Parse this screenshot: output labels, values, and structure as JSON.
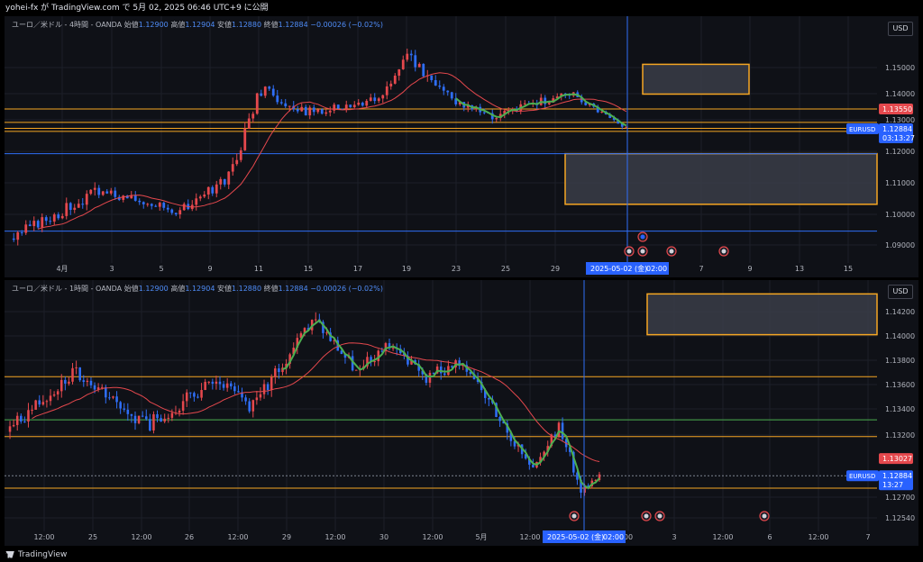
{
  "topbar": {
    "text": "yohei-fx が TradingView.com で 5月 02, 2025 06:46 UTC+9 に公開"
  },
  "footer": {
    "brand": "TradingView"
  },
  "colors": {
    "up": "#e5484d",
    "down": "#2f6ef7",
    "ma": "#e5484d",
    "hull_up": "#4caf50",
    "hull_down": "#2f6ef7",
    "hline_orange": "#f5a623",
    "hline_blue": "#2f6ef7",
    "hline_green": "#4caf50",
    "zone_border": "#f5a623",
    "zone_fill": "#3a3d48",
    "cursor": "#2f6ef7"
  },
  "panes": [
    {
      "header": {
        "symbol": "ユーロ／米ドル - 4時間 - OANDA",
        "o_label": "始値",
        "o": "1.12900",
        "h_label": "高値",
        "h": "1.12904",
        "l_label": "安値",
        "l": "1.12880",
        "c_label": "終値",
        "c": "1.12884",
        "chg": "−0.00026 (−0.02%)"
      },
      "currency": "USD",
      "price_labels": [
        "1.15000",
        "1.14000",
        "1.13000",
        "1.12000",
        "1.11000",
        "1.10000",
        "1.09000"
      ],
      "x_labels": [
        "4月",
        "3",
        "5",
        "9",
        "11",
        "15",
        "17",
        "19",
        "23",
        "25",
        "29",
        "7",
        "9",
        "13",
        "15"
      ],
      "cursor_date": "2025-05-02 (金)",
      "cursor_time": "02:00",
      "badge_red": "1.13550",
      "badge_symbol": "EURUSD",
      "badge_price": "1.12884",
      "badge_countdown": "03:13:27",
      "chart_data": {
        "type": "candlestick",
        "title": "ユーロ／米ドル - 4時間 - OANDA",
        "ylim": [
          1.085,
          1.16
        ],
        "last_close": 1.12884,
        "horizontal_lines": [
          1.1355,
          1.131,
          1.129,
          1.128,
          1.1205,
          1.0945
        ],
        "zones": [
          {
            "y_low": 1.1405,
            "y_high": 1.1505
          },
          {
            "y_low": 1.1035,
            "y_high": 1.1205
          }
        ],
        "series": [
          {
            "name": "price",
            "segments": [
              {
                "from": 1.092,
                "to": 1.108,
                "n": 22,
                "noise": 0.004,
                "seed": 3
              },
              {
                "from": 1.108,
                "to": 1.101,
                "n": 20,
                "noise": 0.003,
                "seed": 7
              },
              {
                "from": 1.101,
                "to": 1.113,
                "n": 12,
                "noise": 0.004,
                "seed": 11
              },
              {
                "from": 1.113,
                "to": 1.142,
                "n": 8,
                "noise": 0.005,
                "seed": 13
              },
              {
                "from": 1.142,
                "to": 1.134,
                "n": 12,
                "noise": 0.004,
                "seed": 17
              },
              {
                "from": 1.134,
                "to": 1.137,
                "n": 12,
                "noise": 0.003,
                "seed": 19
              },
              {
                "from": 1.137,
                "to": 1.139,
                "n": 6,
                "noise": 0.003,
                "seed": 21
              },
              {
                "from": 1.139,
                "to": 1.153,
                "n": 6,
                "noise": 0.004,
                "seed": 23
              },
              {
                "from": 1.153,
                "to": 1.138,
                "n": 12,
                "noise": 0.004,
                "seed": 29
              },
              {
                "from": 1.138,
                "to": 1.133,
                "n": 10,
                "noise": 0.003,
                "seed": 31
              },
              {
                "from": 1.133,
                "to": 1.141,
                "n": 18,
                "noise": 0.003,
                "seed": 37
              },
              {
                "from": 1.141,
                "to": 1.1288,
                "n": 14,
                "noise": 0.002,
                "seed": 41
              }
            ]
          }
        ]
      }
    },
    {
      "header": {
        "symbol": "ユーロ／米ドル - 1時間 - OANDA",
        "o_label": "始値",
        "o": "1.12900",
        "h_label": "高値",
        "h": "1.12904",
        "l_label": "安値",
        "l": "1.12880",
        "c_label": "終値",
        "c": "1.12884",
        "chg": "−0.00026 (−0.02%)"
      },
      "currency": "USD",
      "price_labels": [
        "1.14200",
        "1.14000",
        "1.13800",
        "1.13600",
        "1.13400",
        "1.13200",
        "1.12700",
        "1.12540"
      ],
      "x_labels": [
        "12:00",
        "25",
        "12:00",
        "26",
        "12:00",
        "29",
        "12:00",
        "30",
        "12:00",
        "5月",
        "12:00",
        "00",
        "3",
        "12:00",
        "6",
        "12:00",
        "7"
      ],
      "cursor_date": "2025-05-02 (金)",
      "cursor_time": "02:00",
      "badge_red": "1.13027",
      "badge_symbol": "EURUSD",
      "badge_price": "1.12884",
      "badge_countdown": "13:27",
      "chart_data": {
        "type": "candlestick",
        "title": "ユーロ／米ドル - 1時間 - OANDA",
        "ylim": [
          1.1245,
          1.1435
        ],
        "last_close": 1.12884,
        "horizontal_lines": [
          1.1371,
          1.1335,
          1.1321,
          1.12884,
          1.1278
        ],
        "zones": [
          {
            "y_low": 1.1406,
            "y_high": 1.144
          }
        ],
        "series": [
          {
            "name": "price",
            "segments": [
              {
                "from": 1.1325,
                "to": 1.1375,
                "n": 18,
                "noise": 0.0012,
                "seed": 43
              },
              {
                "from": 1.1375,
                "to": 1.133,
                "n": 20,
                "noise": 0.0012,
                "seed": 47
              },
              {
                "from": 1.133,
                "to": 1.137,
                "n": 20,
                "noise": 0.0012,
                "seed": 53
              },
              {
                "from": 1.137,
                "to": 1.1345,
                "n": 8,
                "noise": 0.0011,
                "seed": 59
              },
              {
                "from": 1.1345,
                "to": 1.1418,
                "n": 18,
                "noise": 0.0012,
                "seed": 61
              },
              {
                "from": 1.1418,
                "to": 1.138,
                "n": 10,
                "noise": 0.0011,
                "seed": 67
              },
              {
                "from": 1.138,
                "to": 1.1395,
                "n": 10,
                "noise": 0.0011,
                "seed": 71
              },
              {
                "from": 1.1395,
                "to": 1.137,
                "n": 10,
                "noise": 0.0011,
                "seed": 73
              },
              {
                "from": 1.137,
                "to": 1.1385,
                "n": 10,
                "noise": 0.0011,
                "seed": 79
              },
              {
                "from": 1.1385,
                "to": 1.1325,
                "n": 12,
                "noise": 0.0012,
                "seed": 83
              },
              {
                "from": 1.1325,
                "to": 1.1295,
                "n": 8,
                "noise": 0.001,
                "seed": 89
              },
              {
                "from": 1.1295,
                "to": 1.1332,
                "n": 6,
                "noise": 0.001,
                "seed": 97
              },
              {
                "from": 1.1332,
                "to": 1.1276,
                "n": 6,
                "noise": 0.001,
                "seed": 101
              },
              {
                "from": 1.1276,
                "to": 1.12884,
                "n": 5,
                "noise": 0.0006,
                "seed": 103
              }
            ]
          }
        ]
      }
    }
  ]
}
